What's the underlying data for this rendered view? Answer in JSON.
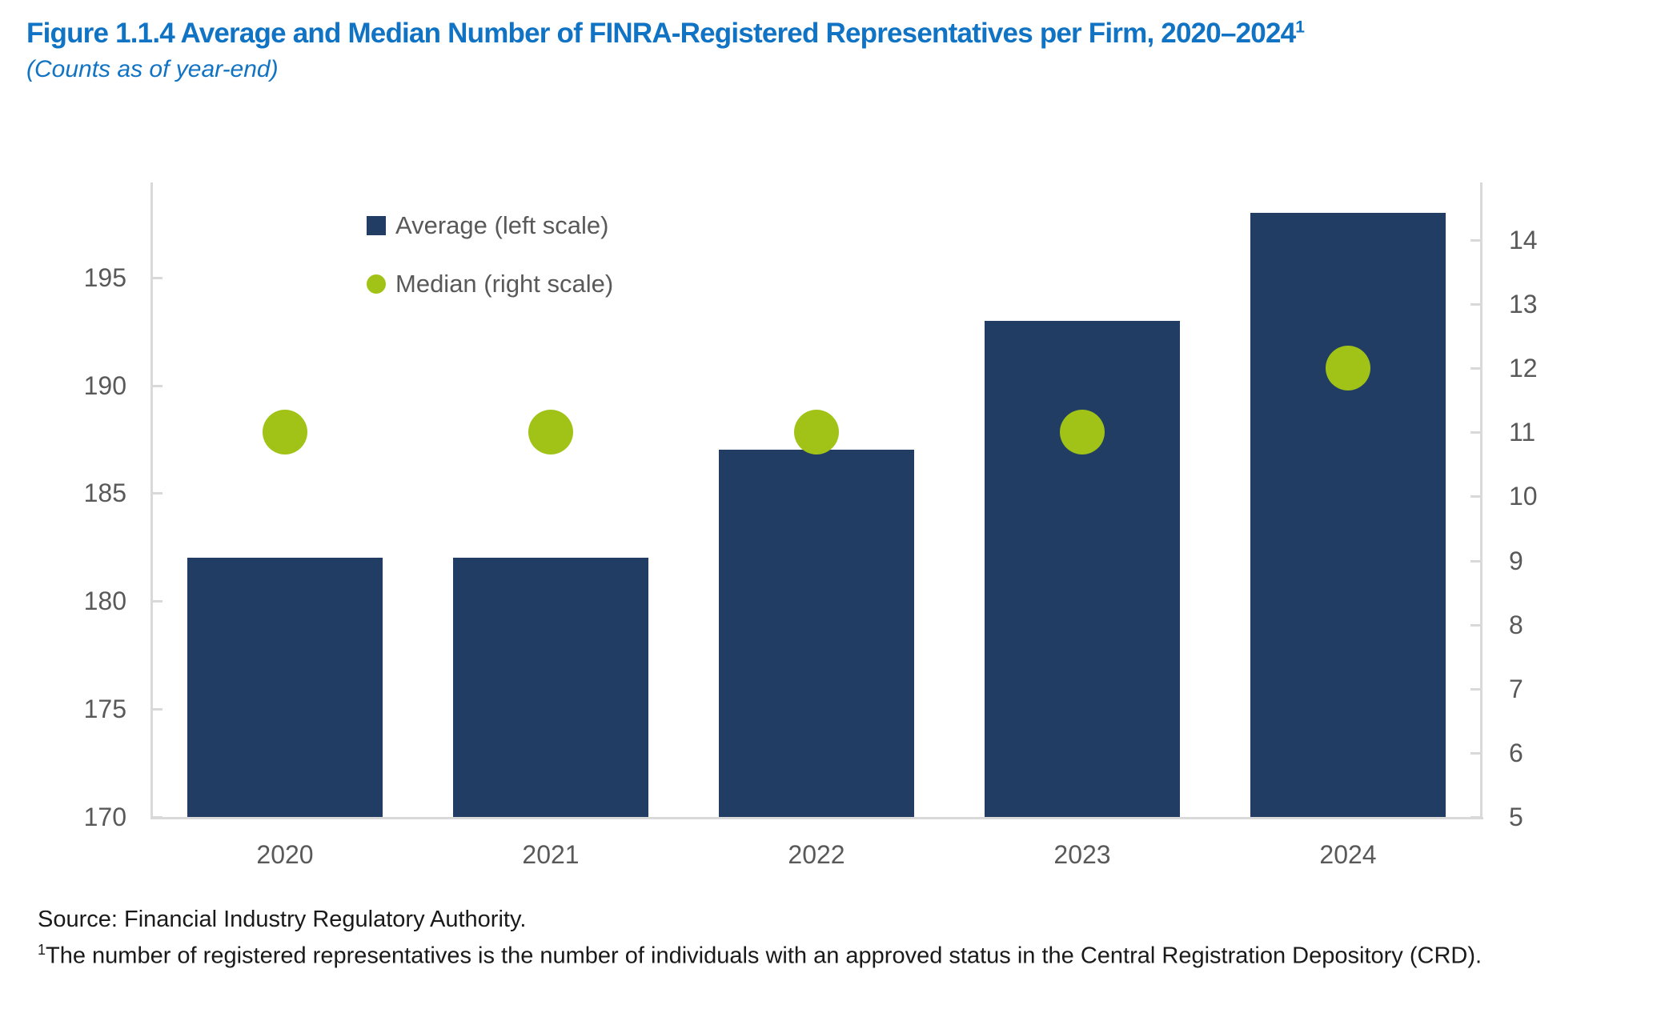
{
  "header": {
    "title": "Figure 1.1.4 Average and Median Number of FINRA-Registered Representatives per Firm, 2020–2024",
    "title_sup": "1",
    "subtitle": "(Counts as of year-end)"
  },
  "colors": {
    "title_blue": "#1173C4",
    "bar_navy": "#213D63",
    "dot_green": "#A1C318",
    "axis_text_gray": "#595959",
    "axis_line_gray": "#D9D9D9",
    "footer_text": "#1A1A1A"
  },
  "chart_data": {
    "type": "bar",
    "title": "Average and Median Number of FINRA-Registered Representatives per Firm, 2020–2024",
    "categories": [
      "2020",
      "2021",
      "2022",
      "2023",
      "2024"
    ],
    "series": [
      {
        "name": "Average (left scale)",
        "subtype": "bar",
        "axis": "left",
        "values": [
          182,
          182,
          187,
          193,
          198
        ],
        "color": "#213D63"
      },
      {
        "name": "Median (right scale)",
        "subtype": "scatter",
        "axis": "right",
        "values": [
          11,
          11,
          11,
          11,
          12
        ],
        "color": "#A1C318"
      }
    ],
    "left_axis": {
      "min": 170,
      "max": 199.4,
      "ticks": [
        170,
        175,
        180,
        185,
        190,
        195
      ]
    },
    "right_axis": {
      "min": 5,
      "max": 14.9,
      "ticks": [
        5,
        6,
        7,
        8,
        9,
        10,
        11,
        12,
        13,
        14
      ]
    },
    "grid": false,
    "legend_position": "inside-top-left"
  },
  "footer": {
    "source": "Source: Financial Industry Regulatory Authority.",
    "note_sup": "1",
    "note": "The number of registered representatives is the number of individuals with an approved status in the Central Registration Depository (CRD)."
  }
}
